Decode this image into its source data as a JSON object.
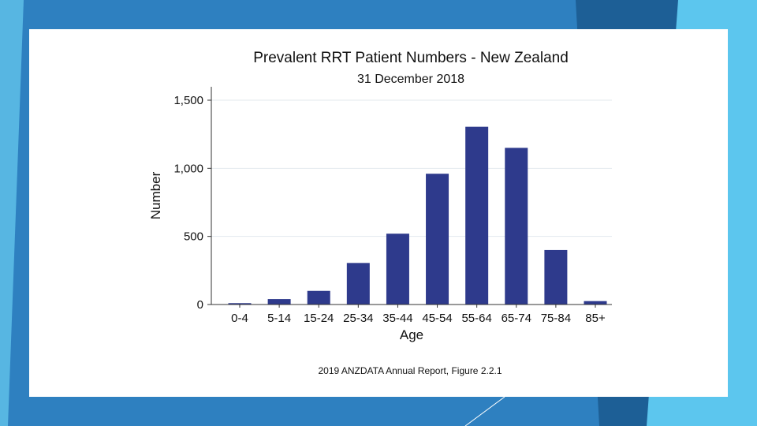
{
  "chart_data": {
    "type": "bar",
    "title": "Prevalent RRT Patient Numbers - New Zealand",
    "subtitle": "31 December 2018",
    "xlabel": "Age",
    "ylabel": "Number",
    "categories": [
      "0-4",
      "5-14",
      "15-24",
      "25-34",
      "35-44",
      "45-54",
      "55-64",
      "65-74",
      "75-84",
      "85+"
    ],
    "values": [
      10,
      40,
      100,
      305,
      520,
      960,
      1305,
      1150,
      400,
      25
    ],
    "ylim": [
      0,
      1600
    ],
    "yticks": [
      0,
      500,
      1000,
      1500
    ],
    "ytick_labels": [
      "0",
      "500",
      "1,000",
      "1,500"
    ],
    "grid": true,
    "bar_color": "#2e3a8c",
    "caption": "2019 ANZDATA Annual Report, Figure 2.2.1"
  },
  "theme": {
    "background": "#2e80c0",
    "panel": "#ffffff",
    "accent_dark": "#1d5f96",
    "accent_light": "#5cc6ee"
  }
}
